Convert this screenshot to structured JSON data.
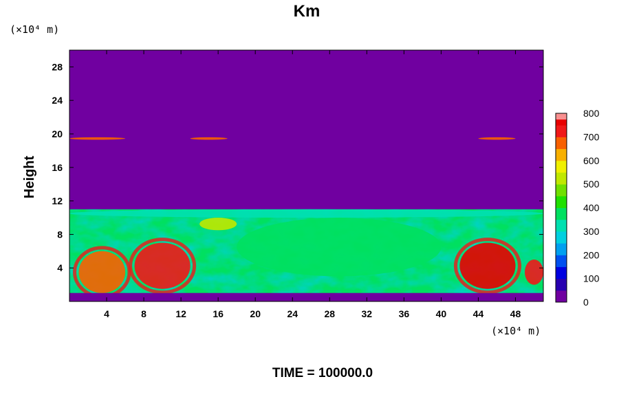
{
  "chart_data": {
    "type": "heatmap",
    "title": "Km",
    "ylabel": "Height",
    "x_unit": "(×10⁴ m)",
    "y_unit": "(×10⁴ m)",
    "xlim": [
      0,
      51
    ],
    "ylim": [
      0,
      30
    ],
    "x_ticks": [
      "4",
      "8",
      "12",
      "16",
      "20",
      "24",
      "28",
      "32",
      "36",
      "40",
      "44",
      "48"
    ],
    "x_tick_values": [
      4,
      8,
      12,
      16,
      20,
      24,
      28,
      32,
      36,
      40,
      44,
      48
    ],
    "y_ticks": [
      "4",
      "8",
      "12",
      "16",
      "20",
      "24",
      "28"
    ],
    "y_tick_values": [
      4,
      8,
      12,
      16,
      20,
      24,
      28
    ],
    "colorbar": {
      "min": 0,
      "max": 800,
      "tick_labels": [
        "800",
        "700",
        "600",
        "500",
        "400",
        "300",
        "200",
        "100",
        "0"
      ],
      "tick_values": [
        800,
        700,
        600,
        500,
        400,
        300,
        200,
        100,
        0
      ]
    },
    "field_description_regions": [
      {
        "value": 650,
        "x": [
          1,
          6
        ],
        "y": [
          1,
          6
        ]
      },
      {
        "value": 700,
        "x": [
          7,
          13
        ],
        "y": [
          1.5,
          7
        ]
      },
      {
        "value": 750,
        "x": [
          42,
          48
        ],
        "y": [
          1.5,
          7
        ]
      },
      {
        "value": 700,
        "x": [
          49,
          51
        ],
        "y": [
          2,
          5
        ]
      },
      {
        "value": 500,
        "x": [
          14,
          18
        ],
        "y": [
          8.5,
          10
        ]
      },
      {
        "value": 380,
        "x": [
          18,
          40
        ],
        "y": [
          3,
          10
        ]
      },
      {
        "value": 300,
        "x": [
          0,
          51
        ],
        "y": [
          10,
          11
        ]
      },
      {
        "value": 650,
        "x": [
          0,
          6
        ],
        "y": [
          19.3,
          19.6
        ]
      },
      {
        "value": 650,
        "x": [
          13,
          17
        ],
        "y": [
          19.3,
          19.6
        ]
      },
      {
        "value": 650,
        "x": [
          44,
          48
        ],
        "y": [
          19.3,
          19.6
        ]
      }
    ],
    "background_value": 0
  },
  "footer": {
    "time_label": "TIME = 100000.0"
  }
}
